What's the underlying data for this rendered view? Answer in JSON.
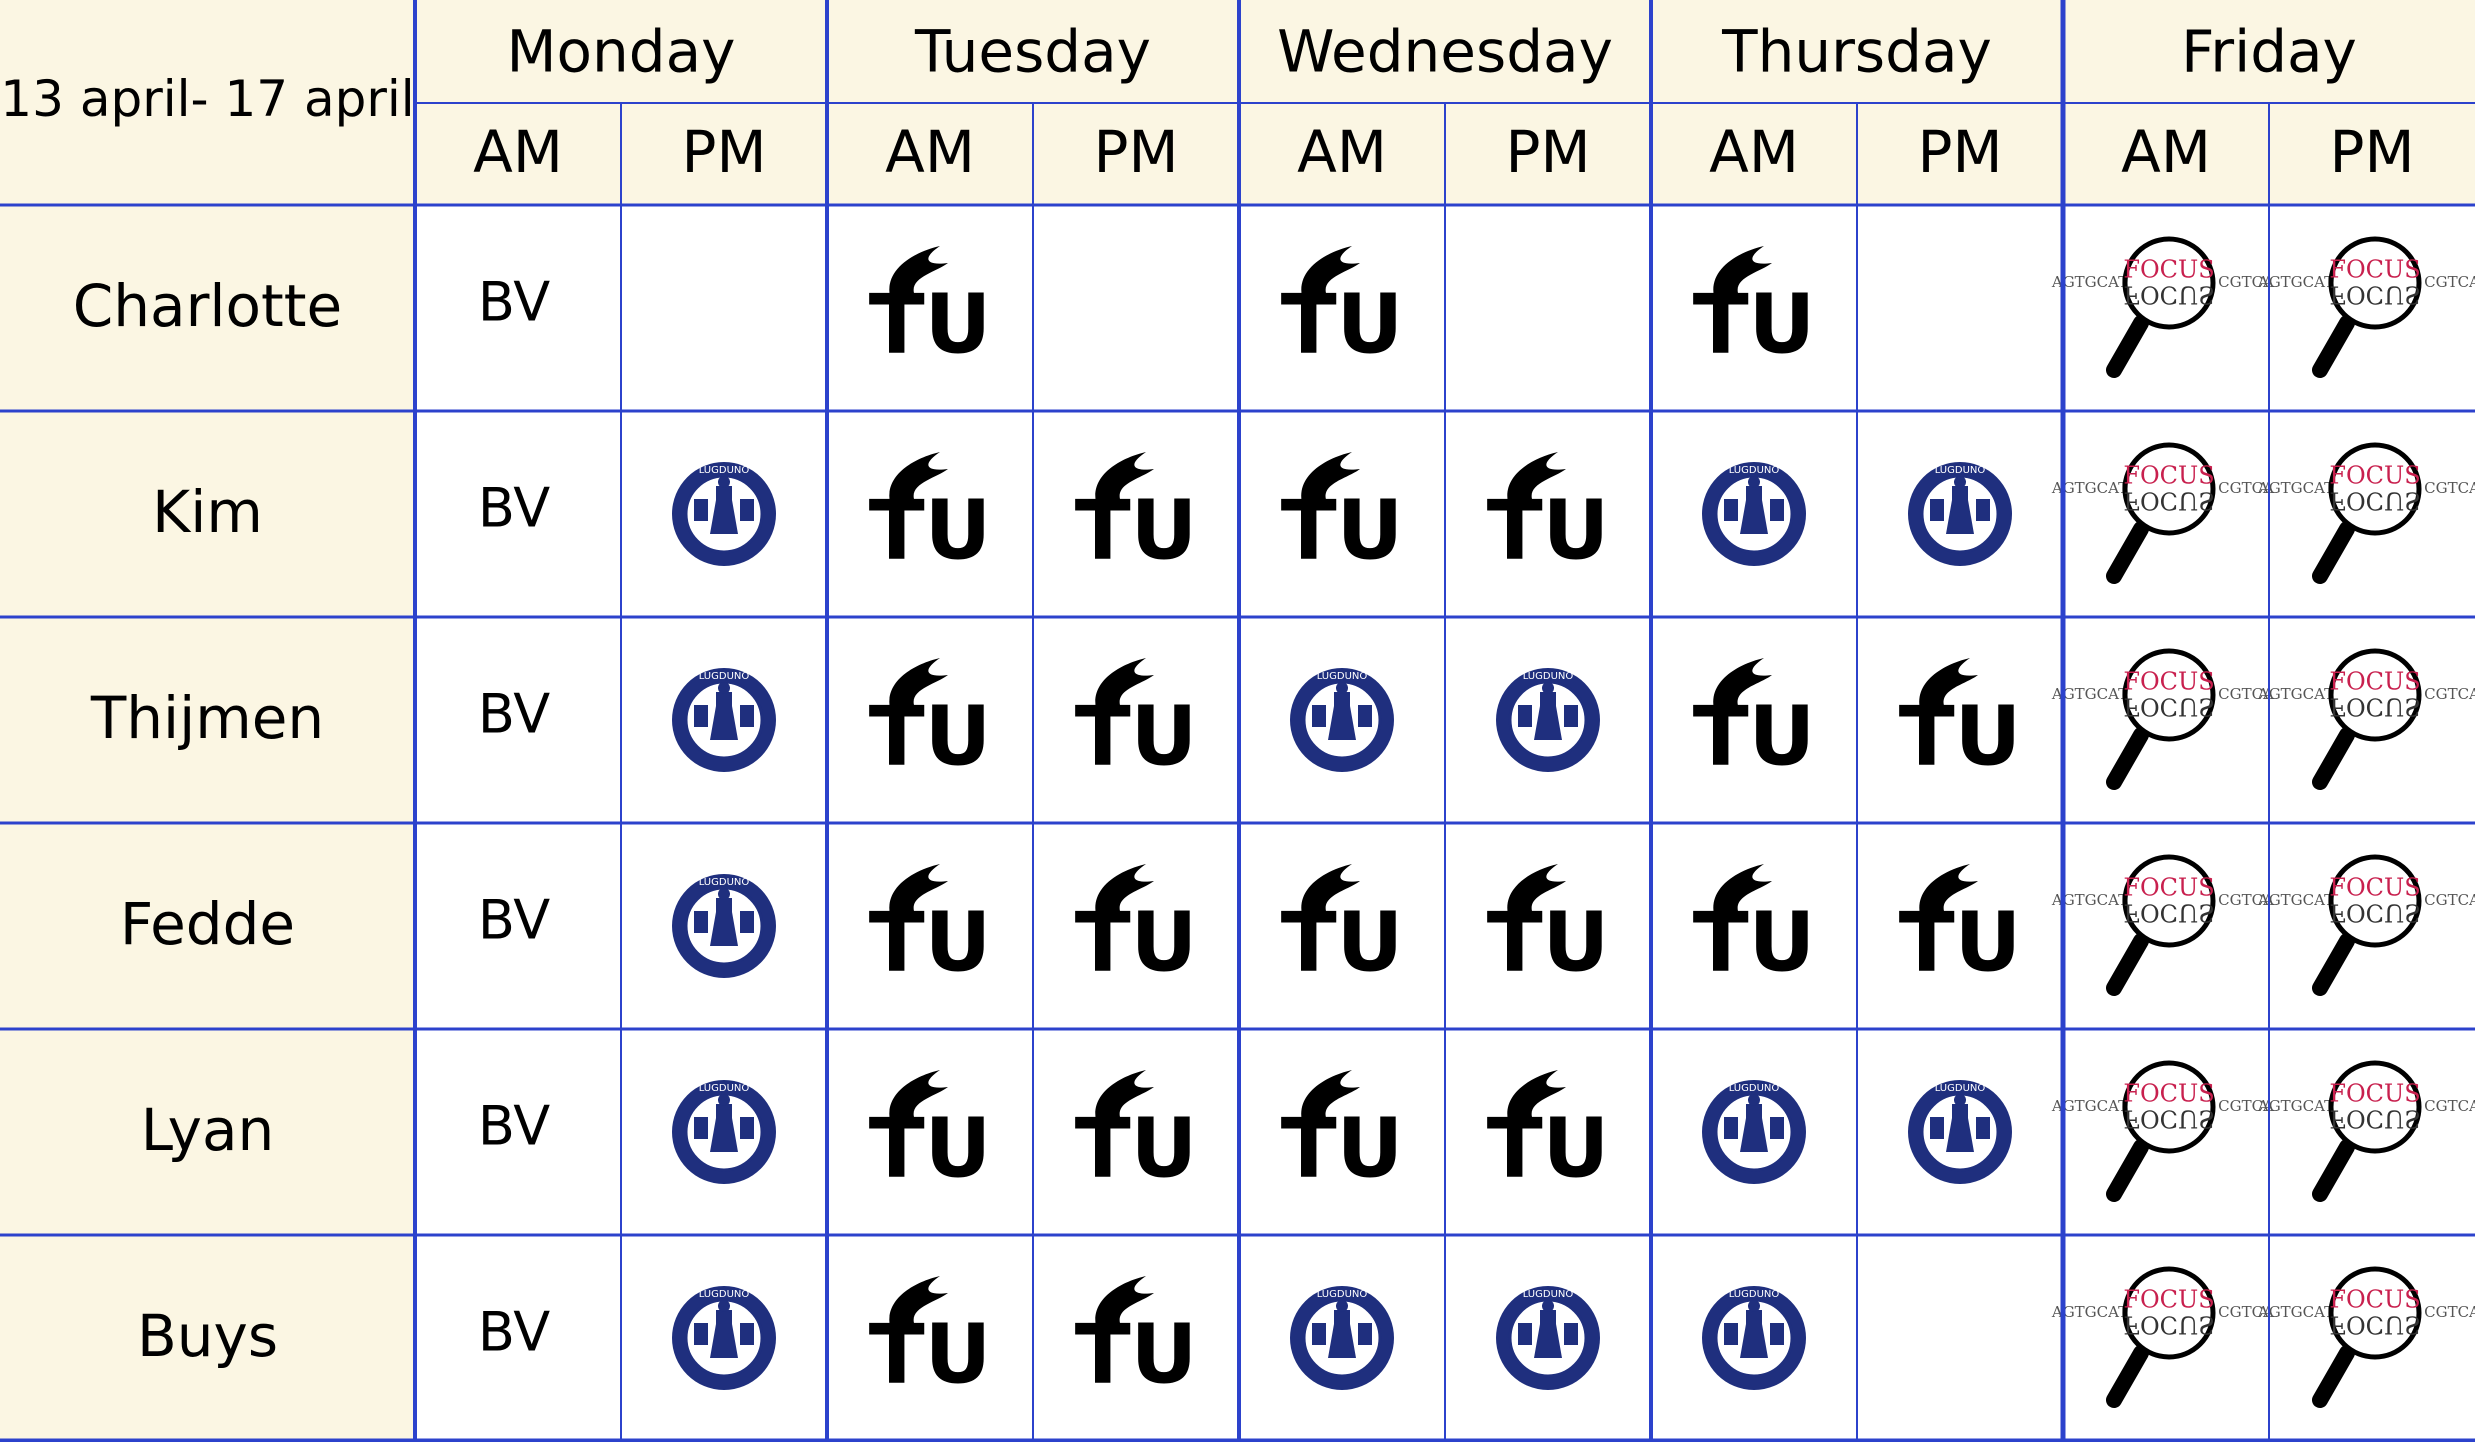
{
  "header": {
    "date_range": "13 april- 17 april",
    "days": [
      "Monday",
      "Tuesday",
      "Wednesday",
      "Thursday",
      "Friday"
    ],
    "halves": [
      "AM",
      "PM"
    ]
  },
  "logos": {
    "tu": {
      "text": "TU"
    },
    "leiden": {
      "text": "LUGDUNO"
    },
    "focus": {
      "text": "FOCUS",
      "sequence_left": "AGTGCATG",
      "sequence_right": "CGTCA"
    }
  },
  "rows": [
    {
      "name": "Charlotte",
      "cells": [
        "BV",
        null,
        "tu",
        null,
        "tu",
        null,
        "tu",
        null,
        "focus",
        "focus"
      ]
    },
    {
      "name": "Kim",
      "cells": [
        "BV",
        "leiden",
        "tu",
        "tu",
        "tu",
        "tu",
        "leiden",
        "leiden",
        "focus",
        "focus"
      ]
    },
    {
      "name": "Thijmen",
      "cells": [
        "BV",
        "leiden",
        "tu",
        "tu",
        "leiden",
        "leiden",
        "tu",
        "tu",
        "focus",
        "focus"
      ]
    },
    {
      "name": "Fedde",
      "cells": [
        "BV",
        "leiden",
        "tu",
        "tu",
        "tu",
        "tu",
        "tu",
        "tu",
        "focus",
        "focus"
      ]
    },
    {
      "name": "Lyan",
      "cells": [
        "BV",
        "leiden",
        "tu",
        "tu",
        "tu",
        "tu",
        "leiden",
        "leiden",
        "focus",
        "focus"
      ]
    },
    {
      "name": "Buys",
      "cells": [
        "BV",
        "leiden",
        "tu",
        "tu",
        "leiden",
        "leiden",
        "leiden",
        null,
        "focus",
        "focus"
      ]
    }
  ]
}
